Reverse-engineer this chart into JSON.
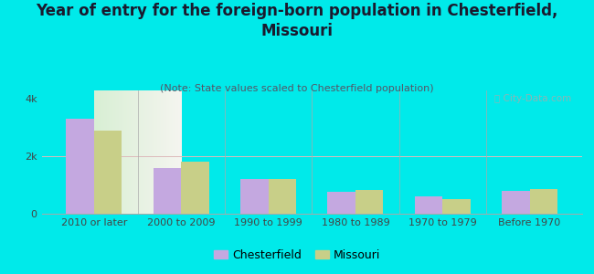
{
  "title": "Year of entry for the foreign-born population in Chesterfield,\nMissouri",
  "subtitle": "(Note: State values scaled to Chesterfield population)",
  "categories": [
    "2010 or later",
    "2000 to 2009",
    "1990 to 1999",
    "1980 to 1989",
    "1970 to 1979",
    "Before 1970"
  ],
  "chesterfield_values": [
    3300,
    1600,
    1200,
    780,
    620,
    790
  ],
  "missouri_values": [
    2900,
    1820,
    1200,
    820,
    500,
    870
  ],
  "chesterfield_color": "#c4a8e0",
  "missouri_color": "#c8cf88",
  "background_color": "#00eaea",
  "ylim": [
    0,
    4300
  ],
  "yticks": [
    0,
    2000,
    4000
  ],
  "ytick_labels": [
    "0",
    "2k",
    "4k"
  ],
  "bar_width": 0.32,
  "legend_labels": [
    "Chesterfield",
    "Missouri"
  ],
  "watermark": "ⓘ City-Data.com",
  "title_fontsize": 12,
  "subtitle_fontsize": 8,
  "tick_fontsize": 8,
  "legend_fontsize": 9,
  "title_color": "#1a1a2e",
  "subtitle_color": "#555566",
  "tick_color": "#444444"
}
